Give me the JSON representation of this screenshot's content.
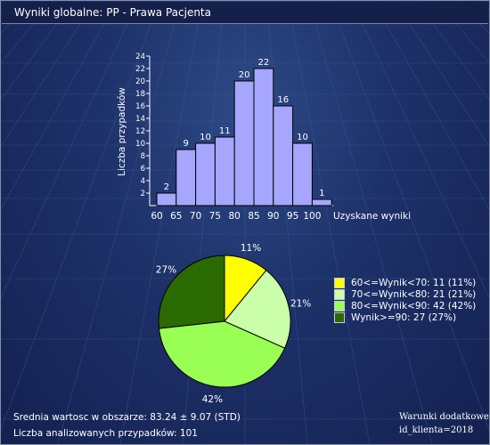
{
  "window": {
    "title": "Wyniki globalne: PP  - Prawa Pacjenta"
  },
  "chart_data": [
    {
      "type": "bar",
      "categories": [
        "60",
        "65",
        "70",
        "75",
        "80",
        "85",
        "90",
        "95",
        "100"
      ],
      "x_ticks": [
        "60",
        "65",
        "70",
        "75",
        "80",
        "85",
        "90",
        "95",
        "100"
      ],
      "bins": [
        [
          60,
          65
        ],
        [
          65,
          70
        ],
        [
          70,
          75
        ],
        [
          75,
          80
        ],
        [
          80,
          85
        ],
        [
          85,
          90
        ],
        [
          90,
          95
        ],
        [
          95,
          100
        ],
        [
          100,
          105
        ]
      ],
      "values": [
        2,
        9,
        10,
        11,
        20,
        22,
        16,
        10,
        1
      ],
      "data_labels": [
        "2",
        "9",
        "10",
        "11",
        "20",
        "22",
        "16",
        "10",
        "1"
      ],
      "y_ticks": [
        "2",
        "4",
        "6",
        "8",
        "10",
        "12",
        "14",
        "16",
        "18",
        "20",
        "22",
        "24"
      ],
      "ylim": [
        0,
        24
      ],
      "xlabel": "Uzyskane wyniki",
      "ylabel": "Liczba przypadków",
      "bar_color": "#a6a6ff",
      "grid": false
    },
    {
      "type": "pie",
      "slices": [
        {
          "label": "60<=Wynik<70: 11 (11%)",
          "value": 11,
          "pct_label": "11%",
          "color": "#ffff00"
        },
        {
          "label": "70<=Wynik<80: 21 (21%)",
          "value": 21,
          "pct_label": "21%",
          "color": "#ccffaa"
        },
        {
          "label": "80<=Wynik<90: 42 (42%)",
          "value": 42,
          "pct_label": "42%",
          "color": "#99ff55"
        },
        {
          "label": "Wynik>=90: 27 (27%)",
          "value": 27,
          "pct_label": "27%",
          "color": "#2a6a00"
        }
      ],
      "legend_position": "right"
    }
  ],
  "stats": {
    "mean": "Srednia wartosc w obszarze: 83.24  ± 9.07 (STD)",
    "count": "Liczba analizowanych przypadków: 101"
  },
  "extra": {
    "label": "Warunki dodatkowe:",
    "value": "id_klienta=2018"
  }
}
